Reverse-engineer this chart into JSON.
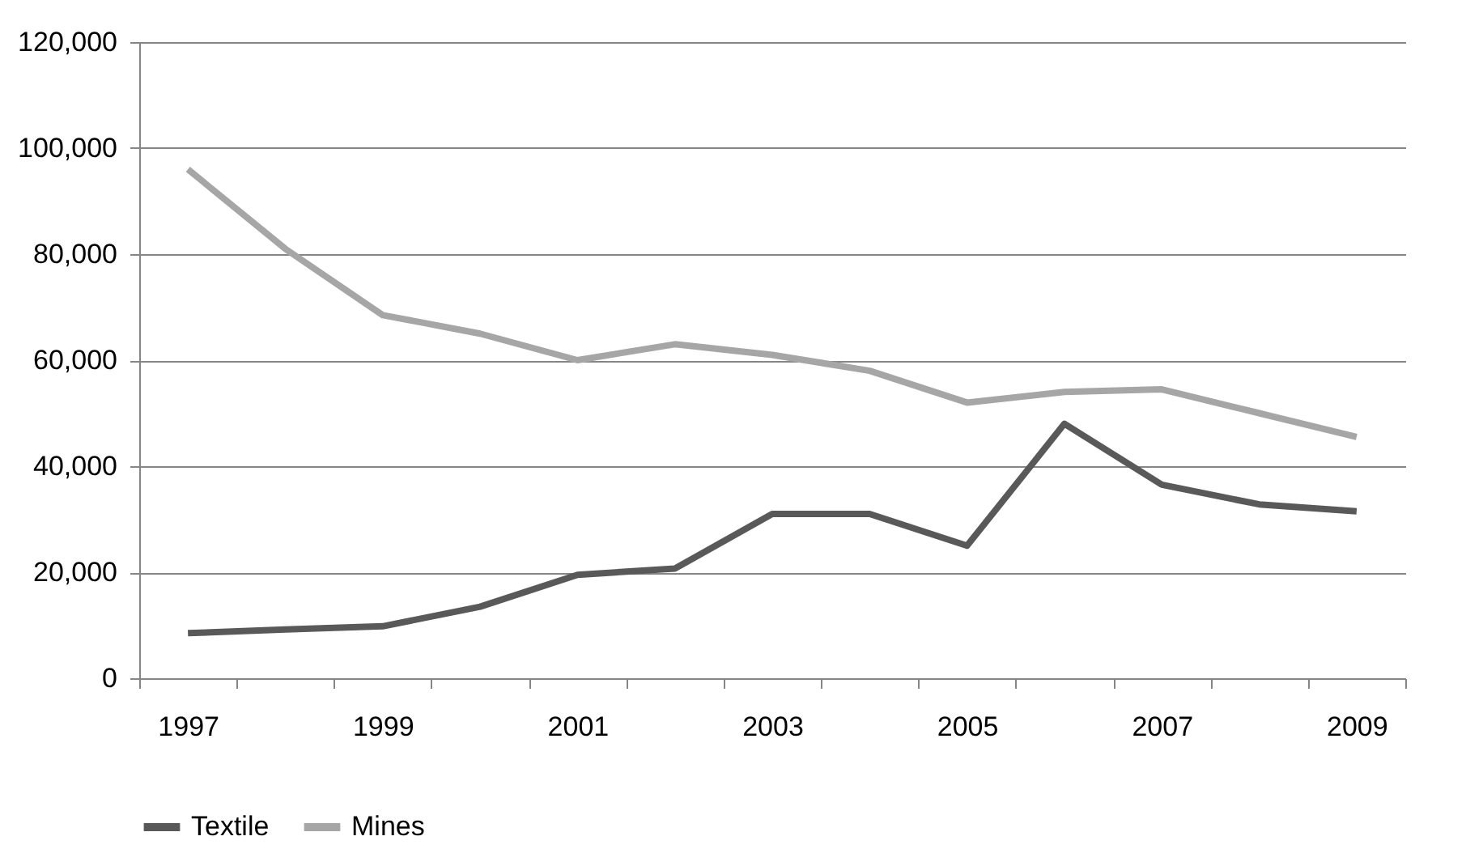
{
  "chart_data": {
    "type": "line",
    "categories": [
      "1997",
      null,
      "1999",
      null,
      "2001",
      null,
      "2003",
      null,
      "2005",
      null,
      "2007",
      null,
      "2009"
    ],
    "series": [
      {
        "name": "Textile",
        "color": "#595959",
        "values": [
          8500,
          9200,
          9800,
          13500,
          19500,
          20700,
          31000,
          31000,
          25000,
          48000,
          36500,
          32800,
          31500
        ]
      },
      {
        "name": "Mines",
        "color": "#a6a6a6",
        "values": [
          96000,
          81000,
          68500,
          65000,
          60000,
          63000,
          61000,
          58000,
          52000,
          54000,
          54500,
          50000,
          45500
        ]
      }
    ],
    "ylim": [
      0,
      120000
    ],
    "yticks": [
      {
        "value": 0,
        "label": "0"
      },
      {
        "value": 20000,
        "label": "20,000"
      },
      {
        "value": 40000,
        "label": "40,000"
      },
      {
        "value": 60000,
        "label": "60,000"
      },
      {
        "value": 80000,
        "label": "80,000"
      },
      {
        "value": 100000,
        "label": "100,000"
      },
      {
        "value": 120000,
        "label": "120,000"
      }
    ],
    "grid": "y",
    "legend": "bottom"
  }
}
